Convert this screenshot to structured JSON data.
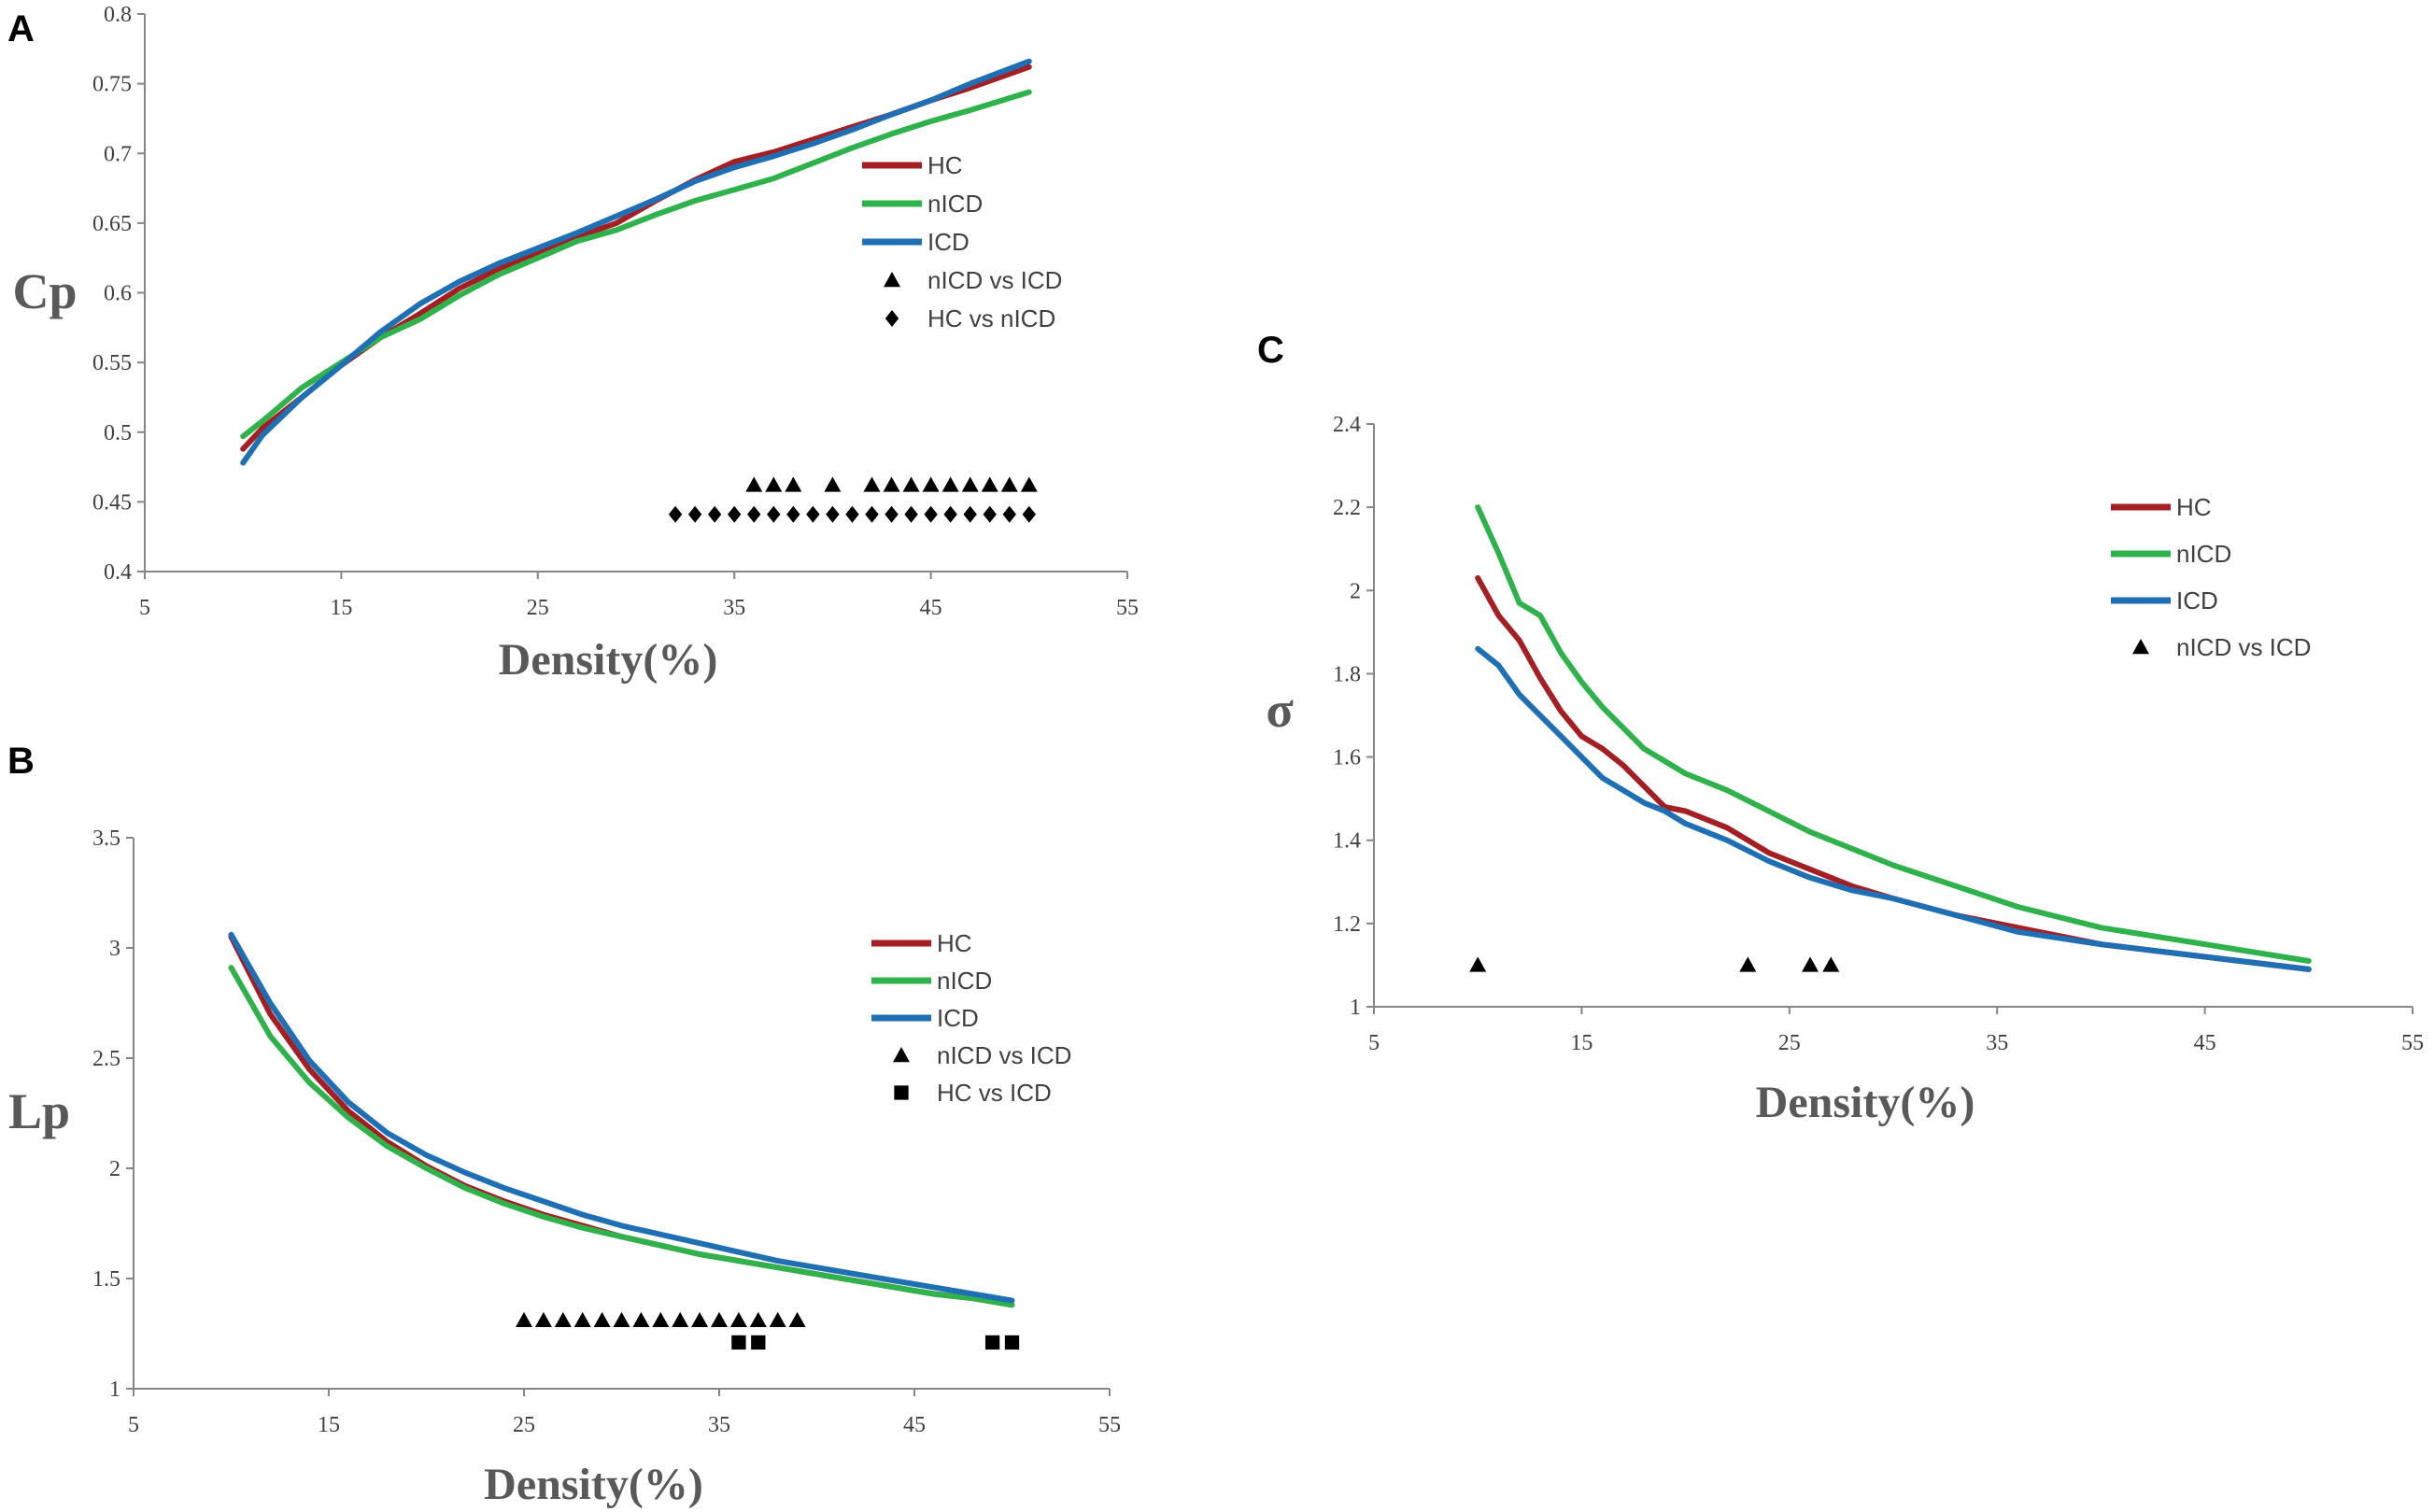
{
  "colors": {
    "HC": "#a31f24",
    "nICD": "#2fb24c",
    "ICD": "#1f6fb5",
    "marker": "#000000"
  },
  "chart_data": [
    {
      "type": "line",
      "panel": "A",
      "xlabel": "Density(%)",
      "ylabel": "Cp",
      "xlim": [
        5,
        55
      ],
      "ylim": [
        0.4,
        0.8
      ],
      "xticks": [
        "5",
        "15",
        "25",
        "35",
        "45",
        "55"
      ],
      "yticks": [
        "0.4",
        "0.45",
        "0.5",
        "0.55",
        "0.6",
        "0.65",
        "0.7",
        "0.75",
        "0.8"
      ],
      "legend_position": "right",
      "x": [
        10,
        11,
        13,
        15,
        17,
        19,
        21,
        23,
        25,
        27,
        29,
        31,
        33,
        35,
        37,
        39,
        41,
        43,
        45,
        47,
        50
      ],
      "series": [
        {
          "name": "HC",
          "color_key": "HC",
          "values": [
            0.488,
            0.503,
            0.525,
            0.548,
            0.568,
            0.585,
            0.603,
            0.617,
            0.628,
            0.64,
            0.65,
            0.666,
            0.681,
            0.694,
            0.701,
            0.71,
            0.719,
            0.728,
            0.738,
            0.747,
            0.762
          ]
        },
        {
          "name": "nICD",
          "color_key": "nICD",
          "values": [
            0.497,
            0.508,
            0.532,
            0.55,
            0.568,
            0.581,
            0.598,
            0.613,
            0.625,
            0.637,
            0.645,
            0.656,
            0.666,
            0.674,
            0.682,
            0.693,
            0.704,
            0.714,
            0.723,
            0.731,
            0.744
          ]
        },
        {
          "name": "ICD",
          "color_key": "ICD",
          "values": [
            0.478,
            0.498,
            0.525,
            0.548,
            0.572,
            0.592,
            0.608,
            0.621,
            0.632,
            0.643,
            0.655,
            0.667,
            0.68,
            0.69,
            0.698,
            0.707,
            0.717,
            0.728,
            0.738,
            0.75,
            0.766
          ]
        }
      ],
      "markers": [
        {
          "name": "nICD vs ICD",
          "shape": "triangle",
          "level": 0.462,
          "x": [
            36,
            37,
            38,
            40,
            42,
            43,
            44,
            45,
            46,
            47,
            48,
            49,
            50
          ]
        },
        {
          "name": "HC vs nICD",
          "shape": "diamond",
          "level": 0.441,
          "x": [
            32,
            33,
            34,
            35,
            36,
            37,
            38,
            39,
            40,
            41,
            42,
            43,
            44,
            45,
            46,
            47,
            48,
            49,
            50
          ]
        }
      ]
    },
    {
      "type": "line",
      "panel": "B",
      "xlabel": "Density(%)",
      "ylabel": "Lp",
      "xlim": [
        5,
        55
      ],
      "ylim": [
        1,
        3.5
      ],
      "xticks": [
        "5",
        "15",
        "25",
        "35",
        "45",
        "55"
      ],
      "yticks": [
        "1",
        "1.5",
        "2",
        "2.5",
        "3",
        "3.5"
      ],
      "legend_position": "right",
      "x": [
        10,
        12,
        14,
        16,
        18,
        20,
        22,
        24,
        26,
        28,
        30,
        32,
        34,
        36,
        38,
        40,
        42,
        44,
        46,
        48,
        50
      ],
      "series": [
        {
          "name": "HC",
          "color_key": "HC",
          "values": [
            3.05,
            2.7,
            2.45,
            2.26,
            2.12,
            2.01,
            1.92,
            1.85,
            1.79,
            1.74,
            1.69,
            1.65,
            1.61,
            1.58,
            1.55,
            1.52,
            1.49,
            1.46,
            1.43,
            1.41,
            1.38
          ]
        },
        {
          "name": "nICD",
          "color_key": "nICD",
          "values": [
            2.91,
            2.6,
            2.39,
            2.23,
            2.1,
            2.0,
            1.91,
            1.84,
            1.78,
            1.73,
            1.69,
            1.65,
            1.61,
            1.58,
            1.55,
            1.52,
            1.49,
            1.46,
            1.43,
            1.41,
            1.38
          ]
        },
        {
          "name": "ICD",
          "color_key": "ICD",
          "values": [
            3.06,
            2.75,
            2.49,
            2.3,
            2.16,
            2.06,
            1.98,
            1.91,
            1.85,
            1.79,
            1.74,
            1.7,
            1.66,
            1.62,
            1.58,
            1.55,
            1.52,
            1.49,
            1.46,
            1.43,
            1.4
          ]
        }
      ],
      "markers": [
        {
          "name": "nICD vs ICD",
          "shape": "triangle",
          "level": 1.31,
          "x": [
            25,
            26,
            27,
            28,
            29,
            30,
            31,
            32,
            33,
            34,
            35,
            36,
            37,
            38,
            39
          ]
        },
        {
          "name": "HC vs ICD",
          "shape": "square",
          "level": 1.21,
          "x": [
            36,
            37,
            49,
            50
          ]
        }
      ]
    },
    {
      "type": "line",
      "panel": "C",
      "xlabel": "Density(%)",
      "ylabel": "σ",
      "xlim": [
        5,
        55
      ],
      "ylim": [
        1,
        2.4
      ],
      "xticks": [
        "5",
        "15",
        "25",
        "35",
        "45",
        "55"
      ],
      "yticks": [
        "1",
        "1.2",
        "1.4",
        "1.6",
        "1.8",
        "2",
        "2.2",
        "2.4"
      ],
      "legend_position": "right",
      "x": [
        10,
        11,
        12,
        13,
        14,
        15,
        16,
        17,
        18,
        19,
        20,
        22,
        24,
        26,
        28,
        30,
        33,
        36,
        40,
        45,
        50
      ],
      "series": [
        {
          "name": "HC",
          "color_key": "HC",
          "values": [
            2.03,
            1.94,
            1.88,
            1.79,
            1.71,
            1.65,
            1.62,
            1.58,
            1.53,
            1.48,
            1.47,
            1.43,
            1.37,
            1.33,
            1.29,
            1.26,
            1.22,
            1.19,
            1.15,
            1.12,
            1.09
          ]
        },
        {
          "name": "nICD",
          "color_key": "nICD",
          "values": [
            2.2,
            2.09,
            1.97,
            1.94,
            1.85,
            1.78,
            1.72,
            1.67,
            1.62,
            1.59,
            1.56,
            1.52,
            1.47,
            1.42,
            1.38,
            1.34,
            1.29,
            1.24,
            1.19,
            1.15,
            1.11
          ]
        },
        {
          "name": "ICD",
          "color_key": "ICD",
          "values": [
            1.86,
            1.82,
            1.75,
            1.7,
            1.65,
            1.6,
            1.55,
            1.52,
            1.49,
            1.47,
            1.44,
            1.4,
            1.35,
            1.31,
            1.28,
            1.26,
            1.22,
            1.18,
            1.15,
            1.12,
            1.09
          ]
        }
      ],
      "markers": [
        {
          "name": "nICD vs ICD",
          "shape": "triangle",
          "level": 1.1,
          "x": [
            10,
            23,
            26,
            27
          ]
        }
      ]
    }
  ]
}
